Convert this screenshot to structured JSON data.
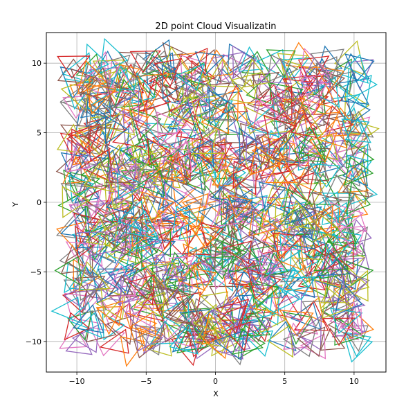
{
  "chart_data": {
    "type": "scatter",
    "title": "2D point Cloud Visualizatin",
    "xlabel": "X",
    "ylabel": "Y",
    "xlim": [
      -12.2,
      12.3
    ],
    "ylim": [
      -12.2,
      12.2
    ],
    "xticks": [
      -10,
      -5,
      0,
      5,
      10
    ],
    "yticks": [
      -10,
      -5,
      0,
      5,
      10
    ],
    "xtick_labels": [
      "−10",
      "−5",
      "0",
      "5",
      "10"
    ],
    "ytick_labels": [
      "−10",
      "−5",
      "0",
      "5",
      "10"
    ],
    "grid": true,
    "legend": "none",
    "marker": "triangle-outline",
    "marker_size": 1.2,
    "point_count": 1000,
    "distribution": {
      "x_range": [
        -10.4,
        10.4
      ],
      "y_range": [
        -10.4,
        10.4
      ]
    },
    "palette": [
      "#1f77b4",
      "#ff7f0e",
      "#2ca02c",
      "#d62728",
      "#9467bd",
      "#8c564b",
      "#e377c2",
      "#7f7f7f",
      "#bcbd22",
      "#17becf"
    ]
  }
}
